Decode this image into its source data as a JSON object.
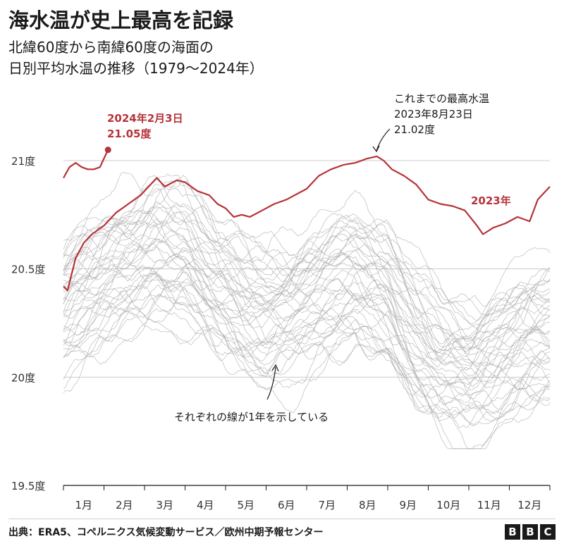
{
  "header": {
    "title": "海水温が史上最高を記録",
    "subtitle_line1": "北緯60度から南緯60度の海面の",
    "subtitle_line2": "日別平均水温の推移（1979〜2024年）"
  },
  "annotations": {
    "latest_date": "2024年2月3日",
    "latest_value": "21.05度",
    "record_line1": "これまでの最高水温",
    "record_line2": "2023年8月23日",
    "record_line3": "21.02度",
    "series_2023": "2023年",
    "gray_lines": "それぞれの線が1年を示している"
  },
  "footer": {
    "source": "出典：ERA5、コペルニクス気候変動サービス／欧州中期予報センター",
    "logo_letters": [
      "B",
      "B",
      "C"
    ]
  },
  "colors": {
    "highlight": "#b5333a",
    "gray_lines": "#a9a9a9",
    "grid": "#cccccc",
    "text": "#222222"
  },
  "chart_data": {
    "type": "line",
    "x_unit": "month",
    "xlim": [
      1,
      13
    ],
    "ylim": [
      19.5,
      21.0
    ],
    "y_ticks": [
      {
        "value": 19.5,
        "label": "19.5度"
      },
      {
        "value": 20.0,
        "label": "20度"
      },
      {
        "value": 20.5,
        "label": "20.5度"
      },
      {
        "value": 21.0,
        "label": "21度"
      }
    ],
    "x_ticks": [
      "1月",
      "2月",
      "3月",
      "4月",
      "5月",
      "6月",
      "7月",
      "8月",
      "9月",
      "10月",
      "11月",
      "12月"
    ],
    "grid": "horizontal",
    "series": [
      {
        "name": "2023年",
        "color": "#b5333a",
        "x": [
          1.0,
          1.1,
          1.3,
          1.5,
          1.7,
          2.0,
          2.3,
          2.6,
          2.9,
          3.1,
          3.3,
          3.5,
          3.8,
          4.0,
          4.3,
          4.6,
          4.8,
          5.0,
          5.2,
          5.4,
          5.6,
          5.9,
          6.2,
          6.5,
          6.8,
          7.0,
          7.3,
          7.6,
          7.9,
          8.2,
          8.5,
          8.73,
          8.9,
          9.1,
          9.4,
          9.7,
          10.0,
          10.3,
          10.6,
          10.9,
          11.2,
          11.35,
          11.6,
          11.9,
          12.2,
          12.5,
          12.7,
          13.0
        ],
        "values": [
          20.42,
          20.4,
          20.55,
          20.62,
          20.66,
          20.7,
          20.76,
          20.8,
          20.84,
          20.88,
          20.92,
          20.88,
          20.91,
          20.9,
          20.86,
          20.84,
          20.8,
          20.78,
          20.74,
          20.75,
          20.74,
          20.77,
          20.8,
          20.82,
          20.85,
          20.87,
          20.93,
          20.96,
          20.98,
          20.99,
          21.01,
          21.02,
          21.0,
          20.96,
          20.93,
          20.89,
          20.82,
          20.8,
          20.79,
          20.77,
          20.7,
          20.66,
          20.69,
          20.71,
          20.74,
          20.72,
          20.82,
          20.88
        ]
      },
      {
        "name": "2024年",
        "color": "#b5333a",
        "x": [
          1.0,
          1.15,
          1.3,
          1.45,
          1.6,
          1.75,
          1.9,
          2.0,
          2.1
        ],
        "values": [
          20.92,
          20.97,
          20.99,
          20.97,
          20.96,
          20.96,
          20.97,
          21.01,
          21.05
        ]
      }
    ],
    "gray_years": {
      "count": 44,
      "years_from": 1979,
      "years_to": 2022,
      "mean_profile": {
        "x": [
          1,
          1.7,
          2.5,
          3.3,
          4,
          4.8,
          5.5,
          6,
          6.7,
          7.5,
          8.2,
          9,
          9.7,
          10.3,
          11,
          11.6,
          12.3,
          13
        ],
        "values": [
          20.35,
          20.45,
          20.55,
          20.62,
          20.6,
          20.45,
          20.35,
          20.3,
          20.35,
          20.45,
          20.5,
          20.42,
          20.2,
          20.1,
          20.05,
          20.1,
          20.2,
          20.25
        ]
      },
      "offset_range": [
        -0.33,
        0.27
      ],
      "minimum_value": 19.67
    }
  }
}
